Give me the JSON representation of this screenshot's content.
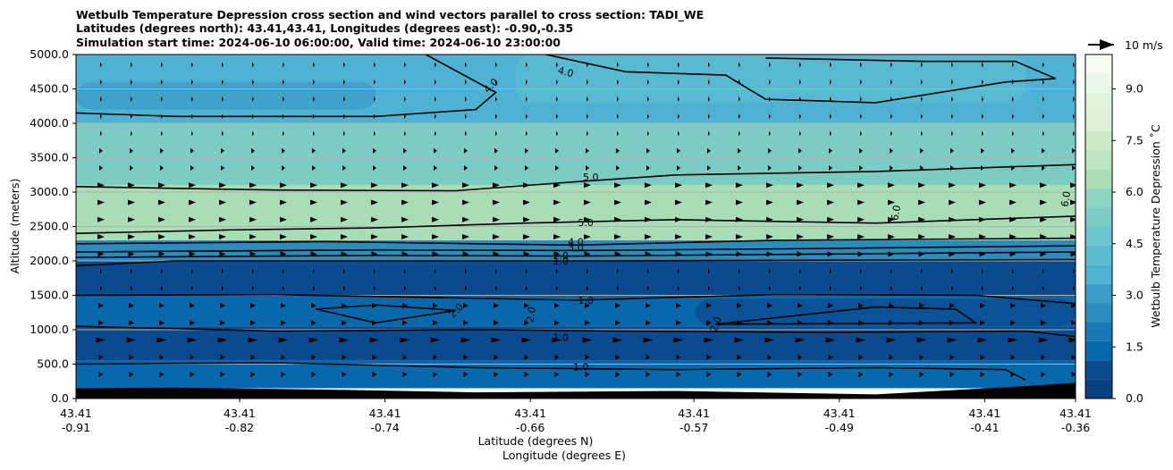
{
  "title": {
    "line1": "Wetbulb Temperature Depression cross section and wind vectors parallel to cross section: TADI_WE",
    "line2": "Latitudes (degrees north): 43.41,43.41, Longitudes (degrees east): -0.90,-0.35",
    "line3": "Simulation start time: 2024-06-10 06:00:00, Valid time: 2024-06-10 23:00:00"
  },
  "chart_data": {
    "type": "heatmap",
    "subtype": "cross-section filled contour with contour lines and wind vectors",
    "ylabel": "Altitude (meters)",
    "xlabel_lat": "Latitude (degrees N)",
    "xlabel_lon": "Longitude (degrees E)",
    "ylim": [
      0,
      5000
    ],
    "yticks": [
      "0.0",
      "500.0",
      "1000.0",
      "1500.0",
      "2000.0",
      "2500.0",
      "3000.0",
      "3500.0",
      "4000.0",
      "4500.0",
      "5000.0"
    ],
    "xlim_lon": [
      -0.91,
      -0.36
    ],
    "xticks_lat": [
      "43.41",
      "43.41",
      "43.41",
      "43.41",
      "43.41",
      "43.41",
      "43.41",
      "43.41"
    ],
    "xticks_lon": [
      "-0.91",
      "-0.82",
      "-0.74",
      "-0.66",
      "-0.57",
      "-0.49",
      "-0.41",
      "-0.36"
    ],
    "grid": "horizontal",
    "colorbar": {
      "label": "Wetbulb Temperature Depression ˚C",
      "range": [
        0,
        10
      ],
      "ticks": [
        "0.0",
        "1.5",
        "3.0",
        "4.5",
        "6.0",
        "7.5",
        "9.0"
      ],
      "colormap": "GnBu_r",
      "colors": [
        "#084081",
        "#0a4b8f",
        "#0868ac",
        "#1a78b4",
        "#2b8cbe",
        "#3b9cc8",
        "#4eb3d3",
        "#5cbcd2",
        "#6cc4cf",
        "#7bccc4",
        "#8fd4c2",
        "#a8ddb5",
        "#bde5bf",
        "#ccebc5",
        "#dcf1d8",
        "#e0f3db",
        "#eaf7e6",
        "#f7fcf0"
      ]
    },
    "layers": [
      {
        "altitude_range": [
          0,
          150
        ],
        "value": "terrain"
      },
      {
        "altitude_range": [
          150,
          550
        ],
        "value": 1.5
      },
      {
        "altitude_range": [
          550,
          1050
        ],
        "value": 0.8
      },
      {
        "altitude_range": [
          1050,
          1500
        ],
        "value": 1.6
      },
      {
        "altitude_range": [
          1500,
          2000
        ],
        "value": 0.6
      },
      {
        "altitude_range": [
          2000,
          2300
        ],
        "value": 2.5
      },
      {
        "altitude_range": [
          2300,
          3100
        ],
        "value": 6.2
      },
      {
        "altitude_range": [
          3100,
          4000
        ],
        "value": 5.0
      },
      {
        "altitude_range": [
          4000,
          5000
        ],
        "value": 3.8
      }
    ],
    "contour_labels": [
      "4.0",
      "4.0",
      "5.0",
      "5.0",
      "4.0",
      "3.0",
      "2.0",
      "1.0",
      "6.0",
      "6.0",
      "2.0",
      "2.0",
      "1.0",
      "1.0",
      "2.0",
      "1.0"
    ],
    "wind_reference": "10 m/s",
    "wind_direction": "eastward (left to right)"
  }
}
